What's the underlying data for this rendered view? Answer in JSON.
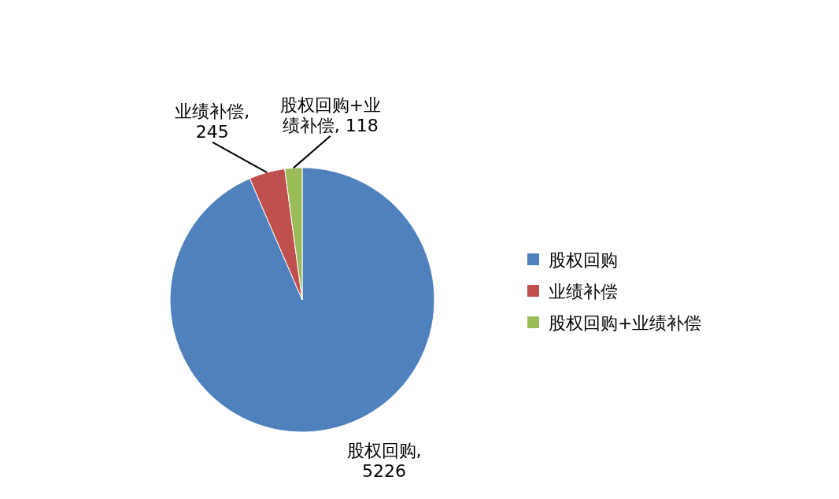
{
  "chart_data": {
    "type": "pie",
    "categories": [
      "股权回购",
      "业绩补偿",
      "股权回购+业绩补偿"
    ],
    "values": [
      5226,
      245,
      118
    ],
    "value_labels": [
      "股权回购, 5226",
      "业绩补偿, 245",
      "股权回购+业绩补偿, 118"
    ],
    "colors": [
      "#4f81bd",
      "#c0504d",
      "#9bbb59"
    ],
    "legend": "right"
  }
}
